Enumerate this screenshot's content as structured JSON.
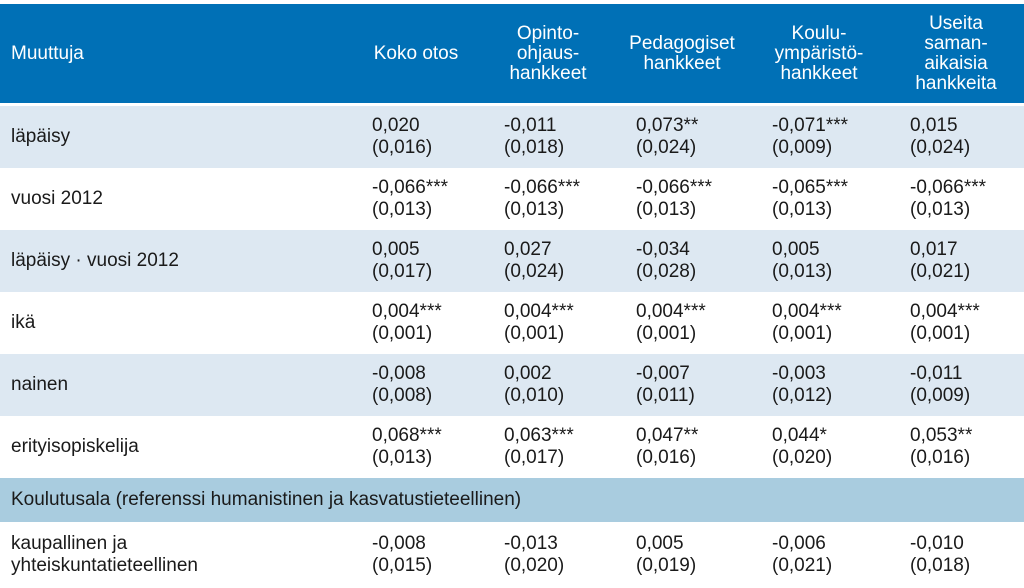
{
  "table": {
    "headers": [
      "Muuttuja",
      "Koko otos",
      "Opinto-\nohjaus-\nhankkeet",
      "Pedagogiset\nhankkeet",
      "Koulu-\nympäristö-\nhankkeet",
      "Useita\nsaman-\naikaisia\nhankkeita"
    ],
    "rows": [
      {
        "label": "läpäisy",
        "cells": [
          {
            "coef": "0,020",
            "se": "(0,016)"
          },
          {
            "coef": "-0,011",
            "se": "(0,018)"
          },
          {
            "coef": "0,073**",
            "se": "(0,024)"
          },
          {
            "coef": "-0,071***",
            "se": "(0,009)"
          },
          {
            "coef": "0,015",
            "se": "(0,024)"
          }
        ]
      },
      {
        "label": "vuosi 2012",
        "cells": [
          {
            "coef": "-0,066***",
            "se": "(0,013)"
          },
          {
            "coef": "-0,066***",
            "se": "(0,013)"
          },
          {
            "coef": "-0,066***",
            "se": "(0,013)"
          },
          {
            "coef": "-0,065***",
            "se": "(0,013)"
          },
          {
            "coef": "-0,066***",
            "se": "(0,013)"
          }
        ]
      },
      {
        "label": "läpäisy · vuosi 2012",
        "cells": [
          {
            "coef": "0,005",
            "se": "(0,017)"
          },
          {
            "coef": "0,027",
            "se": "(0,024)"
          },
          {
            "coef": "-0,034",
            "se": "(0,028)"
          },
          {
            "coef": "0,005",
            "se": "(0,013)"
          },
          {
            "coef": "0,017",
            "se": "(0,021)"
          }
        ]
      },
      {
        "label": "ikä",
        "cells": [
          {
            "coef": "0,004***",
            "se": "(0,001)"
          },
          {
            "coef": "0,004***",
            "se": "(0,001)"
          },
          {
            "coef": "0,004***",
            "se": "(0,001)"
          },
          {
            "coef": "0,004***",
            "se": "(0,001)"
          },
          {
            "coef": "0,004***",
            "se": "(0,001)"
          }
        ]
      },
      {
        "label": "nainen",
        "cells": [
          {
            "coef": "-0,008",
            "se": "(0,008)"
          },
          {
            "coef": "0,002",
            "se": "(0,010)"
          },
          {
            "coef": "-0,007",
            "se": "(0,011)"
          },
          {
            "coef": "-0,003",
            "se": "(0,012)"
          },
          {
            "coef": "-0,011",
            "se": "(0,009)"
          }
        ]
      },
      {
        "label": "erityisopiskelija",
        "cells": [
          {
            "coef": "0,068***",
            "se": "(0,013)"
          },
          {
            "coef": "0,063***",
            "se": "(0,017)"
          },
          {
            "coef": "0,047**",
            "se": "(0,016)"
          },
          {
            "coef": "0,044*",
            "se": "(0,020)"
          },
          {
            "coef": "0,053**",
            "se": "(0,016)"
          }
        ]
      }
    ],
    "section_label": "Koulutusala (referenssi humanistinen ja kasvatustieteellinen)",
    "last_row": {
      "label_line1": "kaupallinen ja",
      "label_line2": "yhteiskuntatieteellinen",
      "cells": [
        {
          "coef": "-0,008",
          "se": "(0,015)"
        },
        {
          "coef": "-0,013",
          "se": "(0,020)"
        },
        {
          "coef": "0,005",
          "se": "(0,019)"
        },
        {
          "coef": "-0,006",
          "se": "(0,021)"
        },
        {
          "coef": "-0,010",
          "se": "(0,018)"
        }
      ]
    }
  }
}
